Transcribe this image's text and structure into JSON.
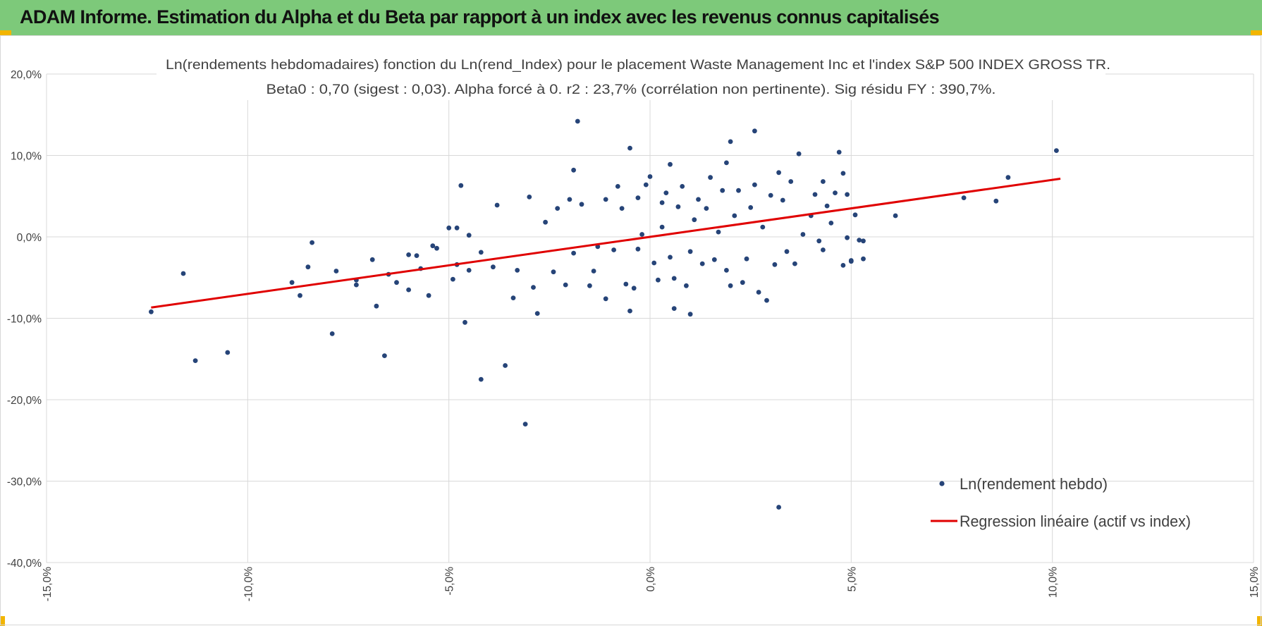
{
  "header": {
    "title": "ADAM Informe. Estimation du Alpha et du Beta par rapport à un index avec les revenus connus capitalisés",
    "colors": {
      "background": "#7dc97a",
      "corner_accent": "#f2b500"
    }
  },
  "chart_data": {
    "type": "scatter",
    "title_line1": "Ln(rendements hebdomadaires) fonction du Ln(rend_Index) pour le placement Waste Management Inc et l'index S&P 500 INDEX GROSS TR.",
    "title_line2": "Beta0 : 0,70 (sigest : 0,03).  Alpha forcé à 0. r2 : 23,7% (corrélation non pertinente). Sig résidu FY : 390,7%.",
    "xlim": [
      -15,
      15
    ],
    "ylim": [
      -40,
      20
    ],
    "x_ticks": [
      -15,
      -10,
      -5,
      0,
      5,
      10,
      15
    ],
    "x_tick_labels": [
      "-15,0%",
      "-10,0%",
      "-5,0%",
      "0,0%",
      "5,0%",
      "10,0%",
      "15,0%"
    ],
    "y_ticks": [
      20,
      10,
      0,
      -10,
      -20,
      -30,
      -40
    ],
    "y_tick_labels": [
      "20,0%",
      "10,0%",
      "0,0%",
      "-10,0%",
      "-20,0%",
      "-30,0%",
      "-40,0%"
    ],
    "grid": true,
    "legend_position": "bottom-right",
    "series": [
      {
        "name": "Ln(rendement hebdo)",
        "kind": "scatter",
        "color": "#264478",
        "points": [
          [
            -12.4,
            -9.2
          ],
          [
            -11.6,
            -4.5
          ],
          [
            -11.3,
            -15.2
          ],
          [
            -10.5,
            -14.2
          ],
          [
            -8.9,
            -5.6
          ],
          [
            -8.7,
            -7.2
          ],
          [
            -8.5,
            -3.7
          ],
          [
            -8.4,
            -0.7
          ],
          [
            -7.9,
            -11.9
          ],
          [
            -7.8,
            -4.2
          ],
          [
            -7.3,
            -5.3
          ],
          [
            -7.3,
            -5.9
          ],
          [
            -6.9,
            -2.8
          ],
          [
            -6.8,
            -8.5
          ],
          [
            -6.6,
            -14.6
          ],
          [
            -6.5,
            -4.6
          ],
          [
            -6.3,
            -5.6
          ],
          [
            -6.0,
            -6.5
          ],
          [
            -6.0,
            -2.2
          ],
          [
            -5.8,
            -2.3
          ],
          [
            -5.7,
            -3.9
          ],
          [
            -5.5,
            -7.2
          ],
          [
            -5.4,
            -1.1
          ],
          [
            -5.3,
            -1.4
          ],
          [
            -5.0,
            1.1
          ],
          [
            -4.9,
            -5.2
          ],
          [
            -4.8,
            -3.4
          ],
          [
            -4.8,
            1.1
          ],
          [
            -4.7,
            6.3
          ],
          [
            -4.6,
            -10.5
          ],
          [
            -4.5,
            0.2
          ],
          [
            -4.5,
            -4.1
          ],
          [
            -4.2,
            -17.5
          ],
          [
            -4.2,
            -1.9
          ],
          [
            -3.9,
            -3.7
          ],
          [
            -3.8,
            3.9
          ],
          [
            -3.6,
            -15.8
          ],
          [
            -3.4,
            -7.5
          ],
          [
            -3.3,
            -4.1
          ],
          [
            -3.1,
            -23.0
          ],
          [
            -3.0,
            4.9
          ],
          [
            -2.9,
            -6.2
          ],
          [
            -2.8,
            -9.4
          ],
          [
            -2.6,
            1.8
          ],
          [
            -2.4,
            -4.3
          ],
          [
            -2.3,
            3.5
          ],
          [
            -2.1,
            -5.9
          ],
          [
            -2.0,
            4.6
          ],
          [
            -1.9,
            -2.0
          ],
          [
            -1.9,
            8.2
          ],
          [
            -1.8,
            14.2
          ],
          [
            -1.7,
            4.0
          ],
          [
            -1.5,
            -6.0
          ],
          [
            -1.4,
            -4.2
          ],
          [
            -1.3,
            -1.2
          ],
          [
            -1.1,
            4.6
          ],
          [
            -1.1,
            -7.6
          ],
          [
            -0.9,
            -1.6
          ],
          [
            -0.8,
            6.2
          ],
          [
            -0.7,
            3.5
          ],
          [
            -0.6,
            -5.8
          ],
          [
            -0.5,
            -9.1
          ],
          [
            -0.5,
            10.9
          ],
          [
            -0.4,
            -6.3
          ],
          [
            -0.3,
            4.8
          ],
          [
            -0.3,
            -1.5
          ],
          [
            -0.2,
            0.3
          ],
          [
            -0.1,
            6.4
          ],
          [
            0.0,
            7.4
          ],
          [
            0.1,
            -3.2
          ],
          [
            0.2,
            -5.3
          ],
          [
            0.3,
            4.2
          ],
          [
            0.3,
            1.2
          ],
          [
            0.4,
            5.4
          ],
          [
            0.5,
            -2.5
          ],
          [
            0.5,
            8.9
          ],
          [
            0.6,
            -5.1
          ],
          [
            0.6,
            -8.8
          ],
          [
            0.7,
            3.7
          ],
          [
            0.8,
            6.2
          ],
          [
            0.9,
            -6.0
          ],
          [
            1.0,
            -9.5
          ],
          [
            1.0,
            -1.8
          ],
          [
            1.1,
            2.1
          ],
          [
            1.2,
            4.6
          ],
          [
            1.3,
            -3.3
          ],
          [
            1.4,
            3.5
          ],
          [
            1.5,
            7.3
          ],
          [
            1.6,
            -2.8
          ],
          [
            1.7,
            0.6
          ],
          [
            1.8,
            5.7
          ],
          [
            1.9,
            -4.1
          ],
          [
            1.9,
            9.1
          ],
          [
            2.0,
            11.7
          ],
          [
            2.0,
            -6.0
          ],
          [
            2.1,
            2.6
          ],
          [
            2.2,
            5.7
          ],
          [
            2.3,
            -5.6
          ],
          [
            2.4,
            -2.7
          ],
          [
            2.5,
            3.6
          ],
          [
            2.6,
            6.4
          ],
          [
            2.6,
            13.0
          ],
          [
            2.7,
            -6.8
          ],
          [
            2.8,
            1.2
          ],
          [
            2.9,
            -7.8
          ],
          [
            3.0,
            5.1
          ],
          [
            3.1,
            -3.4
          ],
          [
            3.2,
            -33.2
          ],
          [
            3.2,
            7.9
          ],
          [
            3.3,
            4.5
          ],
          [
            3.4,
            -1.8
          ],
          [
            3.5,
            6.8
          ],
          [
            3.6,
            -3.3
          ],
          [
            3.7,
            10.2
          ],
          [
            3.8,
            0.3
          ],
          [
            4.0,
            2.6
          ],
          [
            4.1,
            5.2
          ],
          [
            4.2,
            -0.5
          ],
          [
            4.3,
            6.8
          ],
          [
            4.3,
            -1.6
          ],
          [
            4.4,
            3.8
          ],
          [
            4.5,
            1.7
          ],
          [
            4.6,
            5.4
          ],
          [
            4.7,
            10.4
          ],
          [
            4.8,
            -3.5
          ],
          [
            4.8,
            7.8
          ],
          [
            4.9,
            5.2
          ],
          [
            4.9,
            -0.1
          ],
          [
            5.0,
            -2.9
          ],
          [
            5.0,
            -3.0
          ],
          [
            5.1,
            2.7
          ],
          [
            5.2,
            -0.4
          ],
          [
            5.3,
            -0.5
          ],
          [
            5.3,
            -2.7
          ],
          [
            6.1,
            2.6
          ],
          [
            7.8,
            4.8
          ],
          [
            8.6,
            4.4
          ],
          [
            8.9,
            7.3
          ],
          [
            10.1,
            10.6
          ]
        ]
      },
      {
        "name": "Regression linéaire (actif vs index)",
        "kind": "line",
        "color": "#e00000",
        "slope": 0.7,
        "intercept": 0,
        "x_range": [
          -12.4,
          10.2
        ]
      }
    ]
  }
}
